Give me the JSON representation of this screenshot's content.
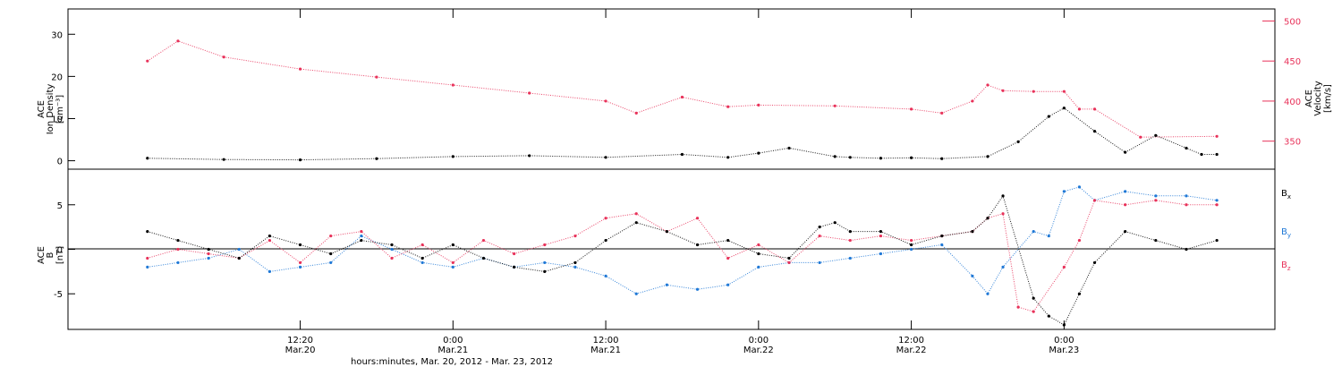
{
  "chart_data": [
    {
      "type": "scatter",
      "panel": "top",
      "ylabel": [
        "ACE",
        "Ion Density",
        "[cm⁻³]"
      ],
      "y2label": [
        "ACE",
        "Velocity",
        "[km/s]"
      ],
      "ylim": [
        -2,
        36
      ],
      "y2lim": [
        315,
        515
      ],
      "yticks": [
        0,
        10,
        20,
        30
      ],
      "y2ticks": [
        350,
        400,
        450,
        500
      ],
      "colors": {
        "density": "#000000",
        "velocity": "#e8325a"
      },
      "series": [
        {
          "name": "",
          "axis": "left",
          "color": "#000000",
          "x": [
            0.0,
            0.25,
            0.5,
            0.75,
            1.0,
            1.25,
            1.5,
            1.75,
            1.9,
            2.0,
            2.1,
            2.25,
            2.3,
            2.4,
            2.5,
            2.6,
            2.75,
            2.85,
            2.95,
            3.0,
            3.1,
            3.2,
            3.3,
            3.4,
            3.45,
            3.5
          ],
          "y": [
            0.6,
            0.3,
            0.2,
            0.5,
            1.0,
            1.2,
            0.8,
            1.5,
            0.8,
            1.8,
            3.0,
            1.0,
            0.8,
            0.6,
            0.7,
            0.5,
            1.0,
            4.5,
            10.5,
            12.5,
            7.0,
            2.0,
            6.0,
            3.0,
            1.5,
            1.5
          ]
        },
        {
          "name": "",
          "axis": "right",
          "color": "#e8325a",
          "x": [
            0.0,
            0.1,
            0.25,
            0.5,
            0.75,
            1.0,
            1.25,
            1.5,
            1.6,
            1.75,
            1.9,
            2.0,
            2.25,
            2.5,
            2.6,
            2.7,
            2.75,
            2.8,
            2.9,
            3.0,
            3.05,
            3.1,
            3.25,
            3.5
          ],
          "y": [
            450,
            475,
            455,
            440,
            430,
            420,
            410,
            400,
            385,
            405,
            393,
            395,
            394,
            390,
            385,
            400,
            420,
            413,
            412,
            412,
            390,
            390,
            355,
            356
          ]
        }
      ]
    },
    {
      "type": "scatter",
      "panel": "bottom",
      "ylabel": [
        "ACE",
        "B",
        "[nT]"
      ],
      "ylim": [
        -9,
        9
      ],
      "yticks": [
        -5,
        0,
        5
      ],
      "xticks": [
        {
          "x": 0.5,
          "line1": "12:20",
          "line2": "Mar.20"
        },
        {
          "x": 1.0,
          "line1": "0:00",
          "line2": "Mar.21"
        },
        {
          "x": 1.5,
          "line1": "12:00",
          "line2": "Mar.21"
        },
        {
          "x": 2.0,
          "line1": "0:00",
          "line2": "Mar.22"
        },
        {
          "x": 2.5,
          "line1": "12:00",
          "line2": "Mar.22"
        },
        {
          "x": 3.0,
          "line1": "0:00",
          "line2": "Mar.23"
        }
      ],
      "xlabel": "hours:minutes, Mar. 20, 2012 - Mar. 23, 2012",
      "legend": [
        "B",
        "B",
        "B"
      ],
      "legend_subscripts": [
        "x",
        "y",
        "z"
      ],
      "colors": {
        "bx": "#000000",
        "by": "#1f78d6",
        "bz": "#e8325a"
      },
      "series": [
        {
          "name": "",
          "color": "#000000",
          "x": [
            0.0,
            0.1,
            0.2,
            0.3,
            0.4,
            0.5,
            0.6,
            0.7,
            0.8,
            0.9,
            1.0,
            1.1,
            1.2,
            1.3,
            1.4,
            1.5,
            1.6,
            1.7,
            1.8,
            1.9,
            2.0,
            2.1,
            2.2,
            2.25,
            2.3,
            2.4,
            2.5,
            2.6,
            2.7,
            2.75,
            2.8,
            2.9,
            2.95,
            3.0,
            3.05,
            3.1,
            3.2,
            3.3,
            3.4,
            3.5
          ],
          "y": [
            2.0,
            1.0,
            0.0,
            -1.0,
            1.5,
            0.5,
            -0.5,
            1.0,
            0.5,
            -1.0,
            0.5,
            -1.0,
            -2.0,
            -2.5,
            -1.5,
            1.0,
            3.0,
            2.0,
            0.5,
            1.0,
            -0.5,
            -1.0,
            2.5,
            3.0,
            2.0,
            2.0,
            0.5,
            1.5,
            2.0,
            3.5,
            6.0,
            -5.5,
            -7.5,
            -8.5,
            -5.0,
            -1.5,
            2.0,
            1.0,
            0.0,
            1.0
          ]
        },
        {
          "name": "",
          "color": "#1f78d6",
          "x": [
            0.0,
            0.1,
            0.2,
            0.3,
            0.4,
            0.5,
            0.6,
            0.7,
            0.8,
            0.9,
            1.0,
            1.1,
            1.2,
            1.3,
            1.4,
            1.5,
            1.6,
            1.7,
            1.8,
            1.9,
            2.0,
            2.1,
            2.2,
            2.3,
            2.4,
            2.5,
            2.6,
            2.7,
            2.75,
            2.8,
            2.9,
            2.95,
            3.0,
            3.05,
            3.1,
            3.2,
            3.3,
            3.4,
            3.5
          ],
          "y": [
            -2.0,
            -1.5,
            -1.0,
            0.0,
            -2.5,
            -2.0,
            -1.5,
            1.5,
            0.0,
            -1.5,
            -2.0,
            -1.0,
            -2.0,
            -1.5,
            -2.0,
            -3.0,
            -5.0,
            -4.0,
            -4.5,
            -4.0,
            -2.0,
            -1.5,
            -1.5,
            -1.0,
            -0.5,
            0.0,
            0.5,
            -3.0,
            -5.0,
            -2.0,
            2.0,
            1.5,
            6.5,
            7.0,
            5.5,
            6.5,
            6.0,
            6.0,
            5.5
          ]
        },
        {
          "name": "",
          "color": "#e8325a",
          "x": [
            0.0,
            0.1,
            0.2,
            0.3,
            0.4,
            0.5,
            0.6,
            0.7,
            0.8,
            0.9,
            1.0,
            1.1,
            1.2,
            1.3,
            1.4,
            1.5,
            1.6,
            1.7,
            1.8,
            1.9,
            2.0,
            2.1,
            2.2,
            2.3,
            2.4,
            2.5,
            2.6,
            2.7,
            2.75,
            2.8,
            2.85,
            2.9,
            3.0,
            3.05,
            3.1,
            3.2,
            3.3,
            3.4,
            3.5
          ],
          "y": [
            -1.0,
            0.0,
            -0.5,
            -1.0,
            1.0,
            -1.5,
            1.5,
            2.0,
            -1.0,
            0.5,
            -1.5,
            1.0,
            -0.5,
            0.5,
            1.5,
            3.5,
            4.0,
            2.0,
            3.5,
            -1.0,
            0.5,
            -1.5,
            1.5,
            1.0,
            1.5,
            1.0,
            1.5,
            2.0,
            3.5,
            4.0,
            -6.5,
            -7.0,
            -2.0,
            1.0,
            5.5,
            5.0,
            5.5,
            5.0,
            5.0
          ]
        }
      ]
    }
  ]
}
